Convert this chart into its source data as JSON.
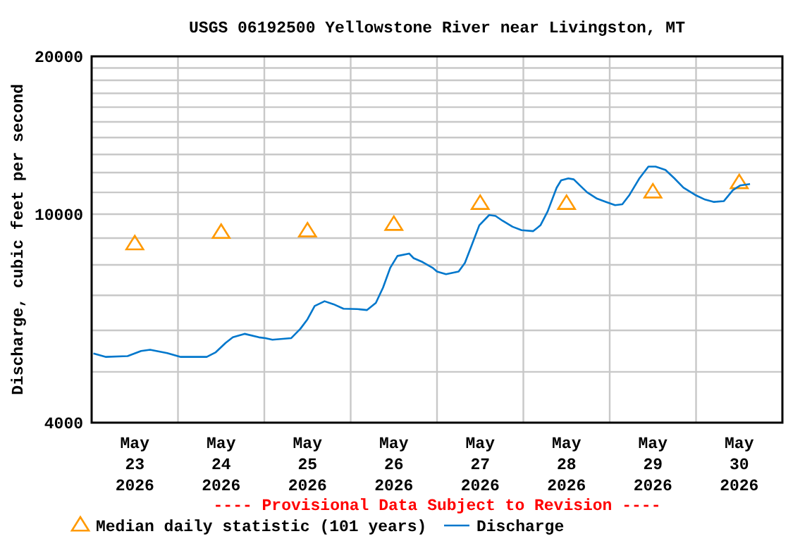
{
  "chart_data": {
    "type": "line",
    "title": "USGS 06192500 Yellowstone River near Livingston, MT",
    "ylabel": "Discharge, cubic feet per second",
    "annotations": [
      "---- Provisional Data Subject to Revision ----"
    ],
    "log": "y",
    "grid": true,
    "legend": "bottom",
    "line_style": "solid",
    "xlim": [
      "2026-05-23T00:00",
      "2026-05-31T00:00"
    ],
    "xticks": [
      {
        "value": "2026-05-23T12:00",
        "label": "May 23 2026"
      },
      {
        "value": "2026-05-24T00:00",
        "label": null
      },
      {
        "value": "2026-05-24T12:00",
        "label": "May 24 2026"
      },
      {
        "value": "2026-05-25T00:00",
        "label": null
      },
      {
        "value": "2026-05-25T12:00",
        "label": "May 25 2026"
      },
      {
        "value": "2026-05-26T00:00",
        "label": null
      },
      {
        "value": "2026-05-26T12:00",
        "label": "May 26 2026"
      },
      {
        "value": "2026-05-27T00:00",
        "label": null
      },
      {
        "value": "2026-05-27T12:00",
        "label": "May 27 2026"
      },
      {
        "value": "2026-05-28T00:00",
        "label": null
      },
      {
        "value": "2026-05-28T12:00",
        "label": "May 28 2026"
      },
      {
        "value": "2026-05-29T00:00",
        "label": null
      },
      {
        "value": "2026-05-29T12:00",
        "label": "May 29 2026"
      },
      {
        "value": "2026-05-30T00:00",
        "label": null
      },
      {
        "value": "2026-05-30T12:00",
        "label": "May 30 2026"
      }
    ],
    "ylim": [
      4000,
      20000
    ],
    "yticks": [
      4000,
      {
        "value": 5000,
        "label": null
      },
      {
        "value": 6000,
        "label": null
      },
      {
        "value": 7000,
        "label": null
      },
      {
        "value": 8000,
        "label": null
      },
      {
        "value": 9000,
        "label": null
      },
      10000,
      {
        "value": 11000,
        "label": null
      },
      {
        "value": 12000,
        "label": null
      },
      {
        "value": 13000,
        "label": null
      },
      {
        "value": 14000,
        "label": null
      },
      {
        "value": 15000,
        "label": null
      },
      {
        "value": 16000,
        "label": null
      },
      {
        "value": 17000,
        "label": null
      },
      {
        "value": 18000,
        "label": null
      },
      {
        "value": 19000,
        "label": null
      },
      20000
    ],
    "series": [
      {
        "name": "Median daily statistic (101 years)",
        "type": "scatter",
        "marker": "triangle",
        "color": "#ff9900",
        "x": [
          "2026-05-23T12:00",
          "2026-05-24T12:00",
          "2026-05-25T12:00",
          "2026-05-26T12:00",
          "2026-05-27T12:00",
          "2026-05-28T12:00",
          "2026-05-29T12:00",
          "2026-05-30T12:00"
        ],
        "values": [
          8760,
          9210,
          9270,
          9540,
          10460,
          10460,
          11000,
          11460
        ]
      },
      {
        "name": "Discharge",
        "color": "#0077cc",
        "x": [
          "2026-05-23T00:30",
          "2026-05-23T04:00",
          "2026-05-23T10:00",
          "2026-05-23T13:45",
          "2026-05-23T16:15",
          "2026-05-23T21:00",
          "2026-05-24T00:45",
          "2026-05-24T08:00",
          "2026-05-24T10:30",
          "2026-05-24T13:15",
          "2026-05-24T15:15",
          "2026-05-24T18:30",
          "2026-05-24T22:30",
          "2026-05-25T00:15",
          "2026-05-25T02:15",
          "2026-05-25T07:30",
          "2026-05-25T10:00",
          "2026-05-25T12:00",
          "2026-05-25T14:00",
          "2026-05-25T16:45",
          "2026-05-25T19:15",
          "2026-05-25T22:00",
          "2026-05-26T01:45",
          "2026-05-26T04:30",
          "2026-05-26T07:00",
          "2026-05-26T09:00",
          "2026-05-26T11:00",
          "2026-05-26T13:00",
          "2026-05-26T16:15",
          "2026-05-26T17:30",
          "2026-05-26T20:00",
          "2026-05-26T22:45",
          "2026-05-27T00:00",
          "2026-05-27T02:30",
          "2026-05-27T06:00",
          "2026-05-27T07:45",
          "2026-05-27T09:45",
          "2026-05-27T11:45",
          "2026-05-27T14:30",
          "2026-05-27T16:15",
          "2026-05-27T18:15",
          "2026-05-27T21:00",
          "2026-05-27T23:30",
          "2026-05-28T02:45",
          "2026-05-28T04:45",
          "2026-05-28T06:45",
          "2026-05-28T09:15",
          "2026-05-28T10:30",
          "2026-05-28T12:30",
          "2026-05-28T14:00",
          "2026-05-28T15:45",
          "2026-05-28T17:45",
          "2026-05-28T20:30",
          "2026-05-28T23:00",
          "2026-05-29T01:30",
          "2026-05-29T03:30",
          "2026-05-29T05:30",
          "2026-05-29T08:15",
          "2026-05-29T10:45",
          "2026-05-29T12:45",
          "2026-05-29T15:30",
          "2026-05-29T18:00",
          "2026-05-29T20:30",
          "2026-05-29T23:45",
          "2026-05-30T02:30",
          "2026-05-30T05:00",
          "2026-05-30T07:45",
          "2026-05-30T10:15",
          "2026-05-30T12:15",
          "2026-05-30T15:00"
        ],
        "values": [
          5420,
          5340,
          5360,
          5480,
          5510,
          5430,
          5340,
          5340,
          5450,
          5680,
          5820,
          5910,
          5820,
          5800,
          5760,
          5800,
          6040,
          6300,
          6680,
          6820,
          6730,
          6600,
          6590,
          6560,
          6770,
          7240,
          7900,
          8320,
          8410,
          8240,
          8100,
          7900,
          7770,
          7680,
          7770,
          8070,
          8760,
          9520,
          9960,
          9920,
          9710,
          9460,
          9320,
          9280,
          9520,
          10120,
          11230,
          11600,
          11700,
          11650,
          11340,
          11000,
          10700,
          10550,
          10400,
          10440,
          10880,
          11700,
          12320,
          12320,
          12140,
          11700,
          11230,
          10880,
          10660,
          10550,
          10590,
          11110,
          11340,
          11410
        ]
      }
    ]
  }
}
